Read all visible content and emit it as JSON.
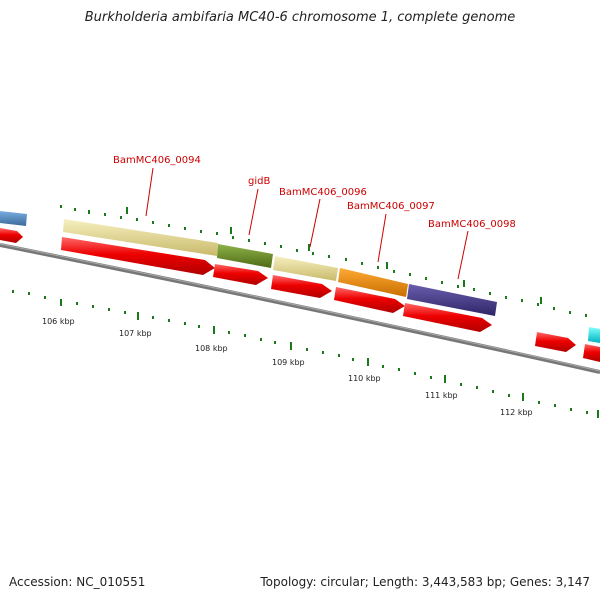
{
  "title": "Burkholderia ambifaria MC40-6 chromosome 1, complete genome",
  "footer": {
    "accession": "Accession: NC_010551",
    "summary": "Topology: circular; Length: 3,443,583 bp; Genes: 3,147"
  },
  "gene_labels": [
    {
      "id": "lbl-0094",
      "text": "BamMC406_0094"
    },
    {
      "id": "lbl-gidB",
      "text": "gidB"
    },
    {
      "id": "lbl-0096",
      "text": "BamMC406_0096"
    },
    {
      "id": "lbl-0097",
      "text": "BamMC406_0097"
    },
    {
      "id": "lbl-0098",
      "text": "BamMC406_0098"
    }
  ],
  "ruler_labels": [
    "106 kbp",
    "107 kbp",
    "108 kbp",
    "109 kbp",
    "110 kbp",
    "111 kbp",
    "112 kbp"
  ],
  "colors": {
    "backbone": "#777777",
    "cds": "#ee0000",
    "tick": "#1a7a1a",
    "label": "#cc0000",
    "feature_pale_yellow": "#efe6a0",
    "feature_olive": "#6b8e23",
    "feature_orange": "#f08c00",
    "feature_purple": "#4a3e8c",
    "feature_blue": "#4a7fb5",
    "feature_cyan": "#00e5ee"
  }
}
